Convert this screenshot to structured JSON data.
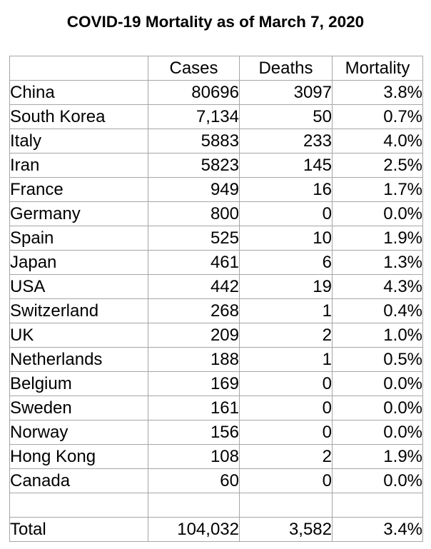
{
  "title": "COVID-19 Mortality as of March 7, 2020",
  "headers": [
    "",
    "Cases",
    "Deaths",
    "Mortality"
  ],
  "rows": [
    {
      "country": "China",
      "cases": "80696",
      "deaths": "3097",
      "mortality": "3.8%"
    },
    {
      "country": "South Korea",
      "cases": "7,134",
      "deaths": "50",
      "mortality": "0.7%"
    },
    {
      "country": "Italy",
      "cases": "5883",
      "deaths": "233",
      "mortality": "4.0%"
    },
    {
      "country": "Iran",
      "cases": "5823",
      "deaths": "145",
      "mortality": "2.5%"
    },
    {
      "country": "France",
      "cases": "949",
      "deaths": "16",
      "mortality": "1.7%"
    },
    {
      "country": "Germany",
      "cases": "800",
      "deaths": "0",
      "mortality": "0.0%"
    },
    {
      "country": "Spain",
      "cases": "525",
      "deaths": "10",
      "mortality": "1.9%"
    },
    {
      "country": "Japan",
      "cases": "461",
      "deaths": "6",
      "mortality": "1.3%"
    },
    {
      "country": "USA",
      "cases": "442",
      "deaths": "19",
      "mortality": "4.3%"
    },
    {
      "country": "Switzerland",
      "cases": "268",
      "deaths": "1",
      "mortality": "0.4%"
    },
    {
      "country": "UK",
      "cases": "209",
      "deaths": "2",
      "mortality": "1.0%"
    },
    {
      "country": "Netherlands",
      "cases": "188",
      "deaths": "1",
      "mortality": "0.5%"
    },
    {
      "country": "Belgium",
      "cases": "169",
      "deaths": "0",
      "mortality": "0.0%"
    },
    {
      "country": "Sweden",
      "cases": "161",
      "deaths": "0",
      "mortality": "0.0%"
    },
    {
      "country": "Norway",
      "cases": "156",
      "deaths": "0",
      "mortality": "0.0%"
    },
    {
      "country": "Hong Kong",
      "cases": "108",
      "deaths": "2",
      "mortality": "1.9%"
    },
    {
      "country": "Canada",
      "cases": "60",
      "deaths": "0",
      "mortality": "0.0%"
    }
  ],
  "total": {
    "country": "Total",
    "cases": "104,032",
    "deaths": "3,582",
    "mortality": "3.4%"
  }
}
